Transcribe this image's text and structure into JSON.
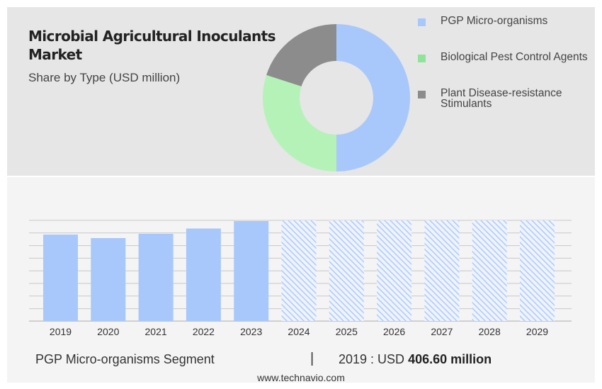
{
  "header": {
    "title": "Microbial Agricultural Inoculants Market",
    "subtitle": "Share by Type (USD million)"
  },
  "legend": [
    {
      "label": "PGP Micro-organisms",
      "color": "#a8c8fb"
    },
    {
      "label": "Biological Pest Control Agents",
      "color": "#8ee59a"
    },
    {
      "label": "Plant Disease-resistance Stimulants",
      "color": "#8c8c8c"
    }
  ],
  "chart_data": [
    {
      "type": "pie",
      "style": "donut",
      "categories": [
        "PGP Micro-organisms",
        "Biological Pest Control Agents",
        "Plant Disease-resistance Stimulants"
      ],
      "values": [
        50,
        30,
        20
      ],
      "colors": [
        "#a8c8fb",
        "#b5f2b8",
        "#8c8c8c"
      ]
    },
    {
      "type": "bar",
      "categories": [
        "2019",
        "2020",
        "2021",
        "2022",
        "2023",
        "2024",
        "2025",
        "2026",
        "2027",
        "2028",
        "2029"
      ],
      "values": [
        406.6,
        390,
        410,
        435,
        470,
        null,
        null,
        null,
        null,
        null,
        null
      ],
      "forecast_from": "2024",
      "bar_color": "#a8c8fb",
      "grid": true
    }
  ],
  "footer": {
    "segment_label": "PGP Micro-organisms Segment",
    "separator": "|",
    "year_label": "2019 : USD",
    "value_label": "406.60 million",
    "website": "www.technavio.com"
  }
}
